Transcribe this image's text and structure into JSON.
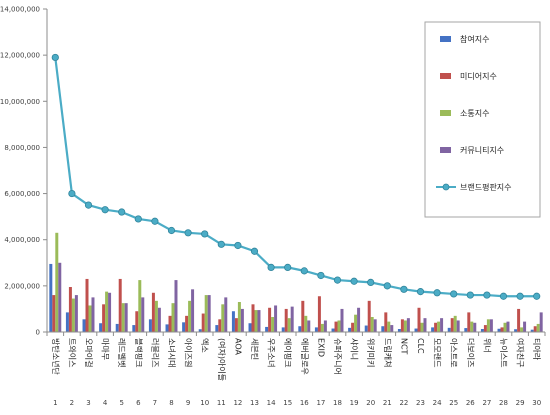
{
  "chart_data": {
    "type": "bar",
    "ylim": [
      0,
      14000000
    ],
    "yticks": [
      0,
      2000000,
      4000000,
      6000000,
      8000000,
      10000000,
      12000000,
      14000000
    ],
    "ytick_labels": [
      "0",
      "2,000,000",
      "4,000,000",
      "6,000,000",
      "8,000,000",
      "10,000,000",
      "12,000,000",
      "14,000,000"
    ],
    "grid": false,
    "legend_position": "right",
    "x_numbers": [
      "1",
      "2",
      "3",
      "4",
      "5",
      "6",
      "7",
      "8",
      "9",
      "10",
      "11",
      "12",
      "13",
      "14",
      "15",
      "16",
      "17",
      "18",
      "19",
      "20",
      "21",
      "22",
      "23",
      "24",
      "25",
      "26",
      "27",
      "28",
      "29",
      "30"
    ],
    "categories": [
      "방탄소년단",
      "트와이스",
      "오마이걸",
      "마마무",
      "레드벨벳",
      "블랙핑크",
      "러블리즈",
      "소녀시대",
      "아이즈원",
      "엑소",
      "(여자)아이들",
      "AOA",
      "세븐틴",
      "우주소녀",
      "에이핑크",
      "에버글로우",
      "EXID",
      "슈퍼주니어",
      "샤이니",
      "위키미키",
      "드림캐쳐",
      "NCT",
      "CLC",
      "모모랜드",
      "아스트로",
      "더보이즈",
      "위너",
      "뉴이스트",
      "여자친구",
      "티아라"
    ],
    "series": [
      {
        "name": "참여지수",
        "color": "#4472c4",
        "values": [
          2950000,
          850000,
          550000,
          380000,
          350000,
          300000,
          550000,
          330000,
          420000,
          120000,
          300000,
          900000,
          380000,
          220000,
          200000,
          250000,
          200000,
          150000,
          180000,
          280000,
          250000,
          130000,
          150000,
          200000,
          180000,
          170000,
          130000,
          140000,
          120000,
          100000
        ]
      },
      {
        "name": "미디어지수",
        "color": "#c0504d",
        "values": [
          1600000,
          1950000,
          2300000,
          1200000,
          2300000,
          900000,
          1700000,
          700000,
          700000,
          800000,
          550000,
          600000,
          1200000,
          1050000,
          1000000,
          1350000,
          1550000,
          450000,
          400000,
          1350000,
          850000,
          550000,
          1050000,
          400000,
          600000,
          850000,
          300000,
          200000,
          1000000,
          250000
        ]
      },
      {
        "name": "소통지수",
        "color": "#9bbb59",
        "values": [
          4300000,
          1450000,
          1150000,
          1750000,
          1250000,
          2250000,
          1350000,
          1250000,
          1350000,
          1600000,
          1200000,
          1300000,
          950000,
          650000,
          600000,
          700000,
          350000,
          500000,
          750000,
          650000,
          450000,
          500000,
          400000,
          450000,
          700000,
          450000,
          550000,
          400000,
          200000,
          350000
        ]
      },
      {
        "name": "커뮤니티지수",
        "color": "#8064a2",
        "values": [
          3000000,
          1600000,
          1500000,
          1700000,
          1250000,
          1500000,
          1050000,
          2250000,
          1850000,
          1600000,
          1500000,
          1000000,
          950000,
          1150000,
          1100000,
          500000,
          500000,
          1000000,
          1050000,
          550000,
          300000,
          600000,
          600000,
          600000,
          500000,
          400000,
          550000,
          450000,
          450000,
          850000
        ]
      },
      {
        "name": "브랜드평판지수",
        "color": "#4bacc6",
        "kind": "line",
        "values": [
          11900000,
          6000000,
          5500000,
          5300000,
          5200000,
          4900000,
          4800000,
          4400000,
          4300000,
          4250000,
          3800000,
          3750000,
          3500000,
          2800000,
          2800000,
          2650000,
          2450000,
          2250000,
          2200000,
          2150000,
          2000000,
          1850000,
          1750000,
          1700000,
          1650000,
          1600000,
          1600000,
          1550000,
          1550000,
          1550000
        ]
      }
    ]
  }
}
